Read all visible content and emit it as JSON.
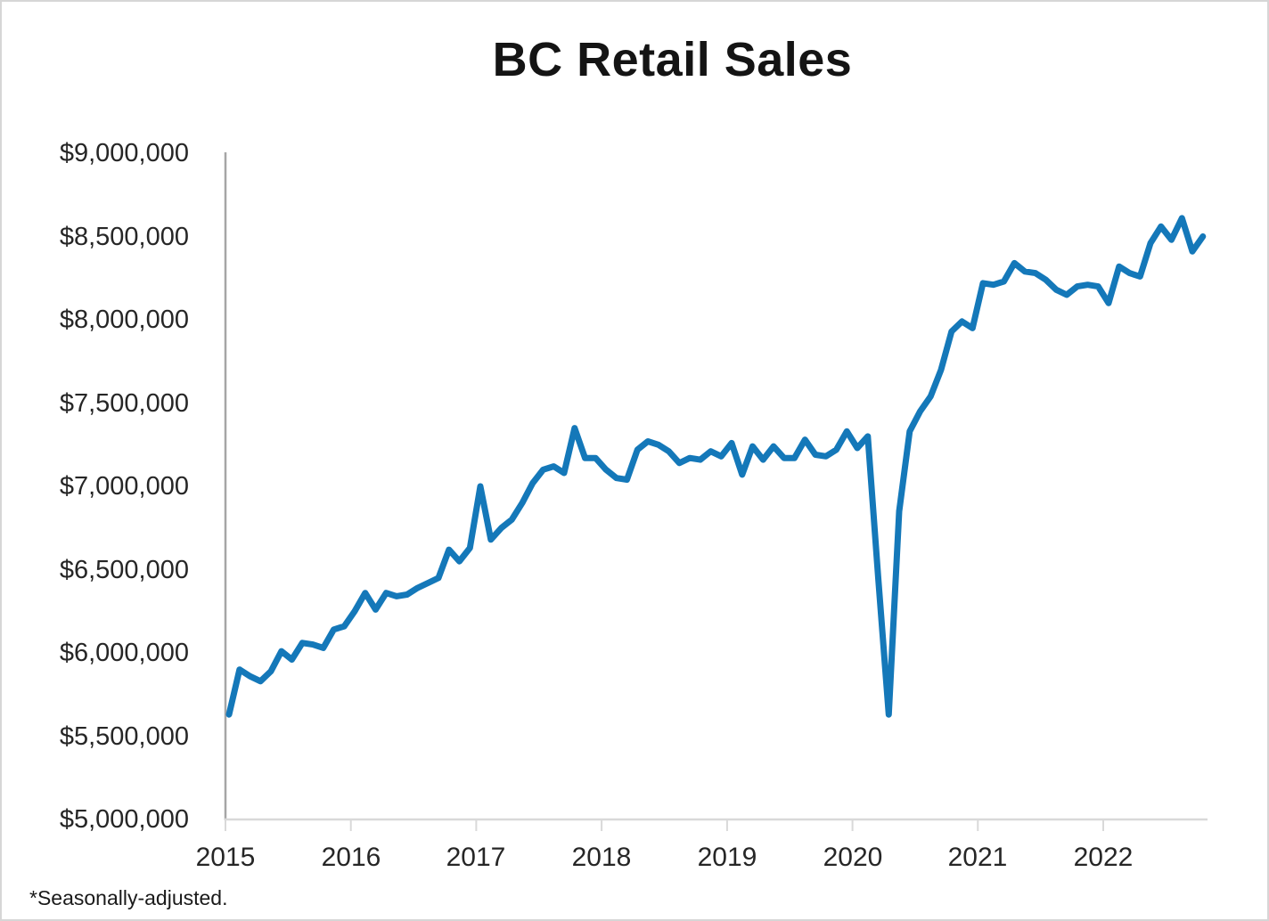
{
  "footnote": "*Seasonally-adjusted.",
  "chart_data": {
    "type": "line",
    "title": "BC Retail Sales",
    "xlabel": "",
    "ylabel": "",
    "ylim": [
      5000000,
      9000000
    ],
    "y_tick_step": 500000,
    "grid": false,
    "legend": "none",
    "line_color": "#1478B9",
    "y_axis_color": "#a6a6a6",
    "x_axis_color": "#d9d9d9",
    "y_tick_labels": [
      "$9,000,000",
      "$8,500,000",
      "$8,000,000",
      "$7,500,000",
      "$7,000,000",
      "$6,500,000",
      "$6,000,000",
      "$5,500,000",
      "$5,000,000"
    ],
    "x_tick_labels": [
      "2015",
      "2016",
      "2017",
      "2018",
      "2019",
      "2020",
      "2021",
      "2022"
    ],
    "frequency": "monthly",
    "x": [
      "2015-01",
      "2015-02",
      "2015-03",
      "2015-04",
      "2015-05",
      "2015-06",
      "2015-07",
      "2015-08",
      "2015-09",
      "2015-10",
      "2015-11",
      "2015-12",
      "2016-01",
      "2016-02",
      "2016-03",
      "2016-04",
      "2016-05",
      "2016-06",
      "2016-07",
      "2016-08",
      "2016-09",
      "2016-10",
      "2016-11",
      "2016-12",
      "2017-01",
      "2017-02",
      "2017-03",
      "2017-04",
      "2017-05",
      "2017-06",
      "2017-07",
      "2017-08",
      "2017-09",
      "2017-10",
      "2017-11",
      "2017-12",
      "2018-01",
      "2018-02",
      "2018-03",
      "2018-04",
      "2018-05",
      "2018-06",
      "2018-07",
      "2018-08",
      "2018-09",
      "2018-10",
      "2018-11",
      "2018-12",
      "2019-01",
      "2019-02",
      "2019-03",
      "2019-04",
      "2019-05",
      "2019-06",
      "2019-07",
      "2019-08",
      "2019-09",
      "2019-10",
      "2019-11",
      "2019-12",
      "2020-01",
      "2020-02",
      "2020-03",
      "2020-04",
      "2020-05",
      "2020-06",
      "2020-07",
      "2020-08",
      "2020-09",
      "2020-10",
      "2020-11",
      "2020-12",
      "2021-01",
      "2021-02",
      "2021-03",
      "2021-04",
      "2021-05",
      "2021-06",
      "2021-07",
      "2021-08",
      "2021-09",
      "2021-10",
      "2021-11",
      "2021-12",
      "2022-01",
      "2022-02",
      "2022-03",
      "2022-04",
      "2022-05",
      "2022-06",
      "2022-07",
      "2022-08",
      "2022-09",
      "2022-10"
    ],
    "series": [
      {
        "name": "BC retail sales, seasonally adjusted",
        "values": [
          5630000,
          5900000,
          5860000,
          5830000,
          5890000,
          6010000,
          5960000,
          6060000,
          6050000,
          6030000,
          6140000,
          6160000,
          6250000,
          6360000,
          6260000,
          6360000,
          6340000,
          6350000,
          6390000,
          6420000,
          6450000,
          6620000,
          6550000,
          6630000,
          7000000,
          6680000,
          6750000,
          6800000,
          6900000,
          7020000,
          7100000,
          7120000,
          7080000,
          7350000,
          7170000,
          7170000,
          7100000,
          7050000,
          7040000,
          7220000,
          7270000,
          7250000,
          7210000,
          7140000,
          7170000,
          7160000,
          7210000,
          7180000,
          7260000,
          7070000,
          7240000,
          7160000,
          7240000,
          7170000,
          7170000,
          7280000,
          7190000,
          7180000,
          7220000,
          7330000,
          7230000,
          7300000,
          6450000,
          5630000,
          6850000,
          7330000,
          7450000,
          7540000,
          7700000,
          7930000,
          7990000,
          7950000,
          8220000,
          8210000,
          8230000,
          8340000,
          8290000,
          8280000,
          8240000,
          8180000,
          8150000,
          8200000,
          8210000,
          8200000,
          8100000,
          8320000,
          8280000,
          8260000,
          8460000,
          8560000,
          8480000,
          8610000,
          8410000,
          8500000
        ]
      }
    ]
  }
}
